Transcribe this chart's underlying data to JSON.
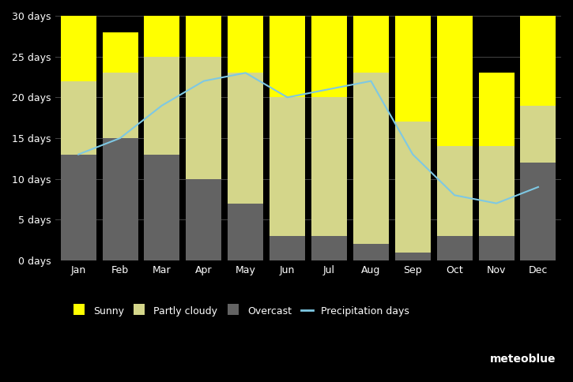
{
  "months": [
    "Jan",
    "Feb",
    "Mar",
    "Apr",
    "May",
    "Jun",
    "Jul",
    "Aug",
    "Sep",
    "Oct",
    "Nov",
    "Dec"
  ],
  "overcast": [
    13,
    15,
    13,
    10,
    7,
    3,
    3,
    2,
    1,
    3,
    3,
    12
  ],
  "partly_cloudy": [
    9,
    8,
    12,
    15,
    16,
    17,
    17,
    21,
    16,
    11,
    11,
    7
  ],
  "sunny": [
    8,
    5,
    5,
    5,
    7,
    10,
    10,
    7,
    13,
    16,
    9,
    11
  ],
  "precipitation": [
    13,
    15,
    19,
    22,
    23,
    20,
    21,
    22,
    13,
    8,
    7,
    9
  ],
  "color_overcast": "#636363",
  "color_partly_cloudy": "#d4d68a",
  "color_sunny": "#ffff00",
  "color_precip": "#7ec8e3",
  "ylim": [
    0,
    30
  ],
  "yticks": [
    0,
    5,
    10,
    15,
    20,
    25,
    30
  ],
  "ytick_labels": [
    "0 days",
    "5 days",
    "10 days",
    "15 days",
    "20 days",
    "25 days",
    "30 days"
  ],
  "bg_color": "#000000",
  "plot_bg_color": "#000000",
  "grid_color": "#444444",
  "bar_width": 0.85,
  "legend_labels": [
    "Sunny",
    "Partly cloudy",
    "Overcast",
    "Precipitation days"
  ],
  "legend_bg": "#000000",
  "legend_text_color": "#ffffff",
  "tick_color": "#ffffff",
  "watermark": "meteoblue",
  "watermark_color": "#ffffff"
}
